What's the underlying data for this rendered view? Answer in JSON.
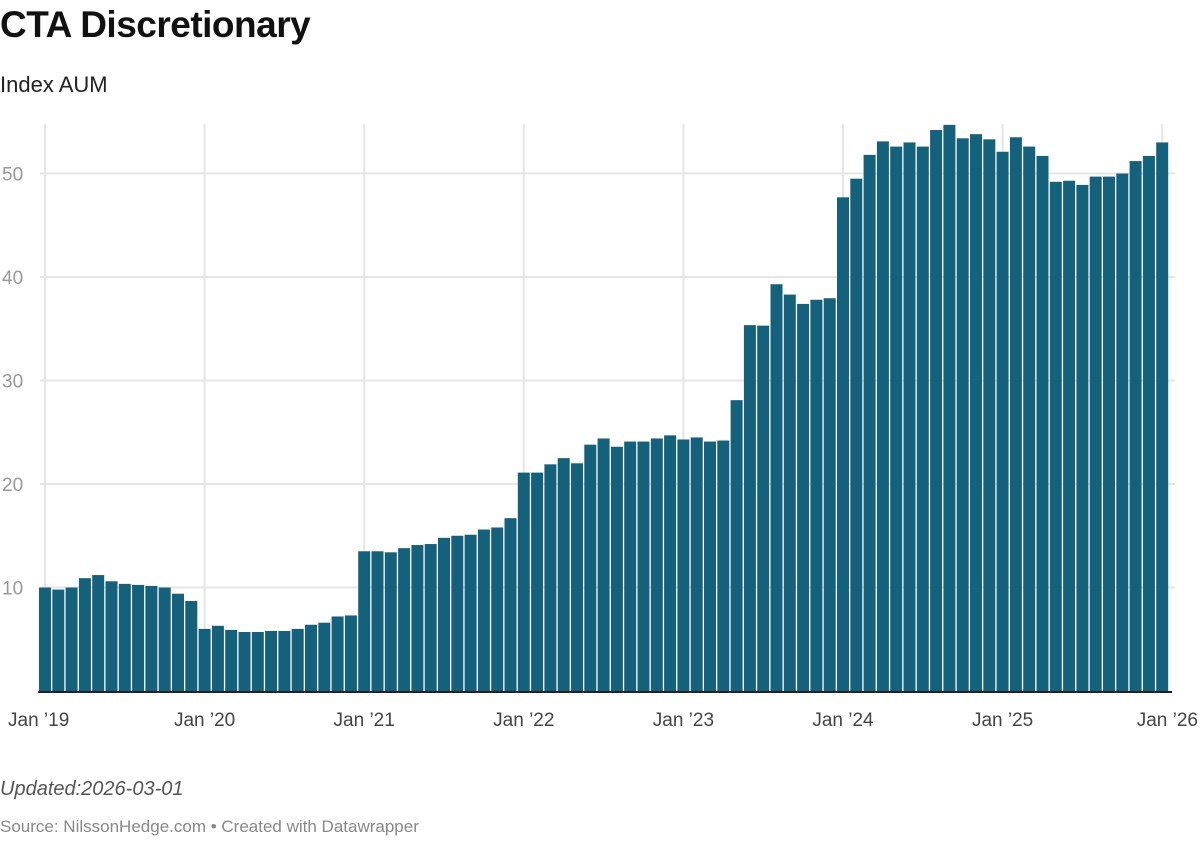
{
  "header": {
    "title": "CTA Discretionary",
    "subtitle": "Index AUM"
  },
  "footer": {
    "notes": "Updated:2026-03-01",
    "source": "Source: NilssonHedge.com • Created with Datawrapper"
  },
  "colors": {
    "bar": "#15607a",
    "grid": "#e5e5e5",
    "axis": "#222222"
  },
  "chart_data": {
    "type": "bar",
    "title": "CTA Discretionary",
    "subtitle": "Index AUM",
    "xlabel": "",
    "ylabel": "",
    "ylim": [
      0,
      55
    ],
    "grid": true,
    "x_start": "2019-01",
    "x_end": "2026-01",
    "frequency": "monthly",
    "y_ticks": [
      10,
      20,
      30,
      40,
      50
    ],
    "x_tick_labels": [
      "Jan ’19",
      "Jan ’20",
      "Jan ’21",
      "Jan ’22",
      "Jan ’23",
      "Jan ’24",
      "Jan ’25",
      "Jan ’26"
    ],
    "values": [
      10.0,
      9.8,
      10.0,
      10.9,
      11.2,
      10.6,
      10.35,
      10.25,
      10.15,
      10.0,
      9.4,
      8.7,
      6.0,
      6.3,
      5.9,
      5.7,
      5.7,
      5.8,
      5.8,
      6.0,
      6.4,
      6.6,
      7.2,
      7.3,
      13.5,
      13.5,
      13.4,
      13.8,
      14.1,
      14.2,
      14.8,
      15.0,
      15.1,
      15.6,
      15.8,
      16.7,
      21.1,
      21.1,
      21.9,
      22.5,
      22.0,
      23.8,
      24.4,
      23.6,
      24.1,
      24.1,
      24.4,
      24.7,
      24.3,
      24.5,
      24.1,
      24.2,
      28.1,
      35.35,
      35.3,
      39.3,
      38.3,
      37.4,
      37.8,
      37.95,
      47.7,
      49.5,
      51.8,
      53.1,
      52.6,
      53.0,
      52.6,
      54.2,
      54.7,
      53.4,
      53.8,
      53.3,
      52.1,
      53.5,
      52.6,
      51.7,
      49.2,
      49.3,
      48.9,
      49.7,
      49.7,
      50.0,
      51.2,
      51.7,
      53.0
    ]
  }
}
